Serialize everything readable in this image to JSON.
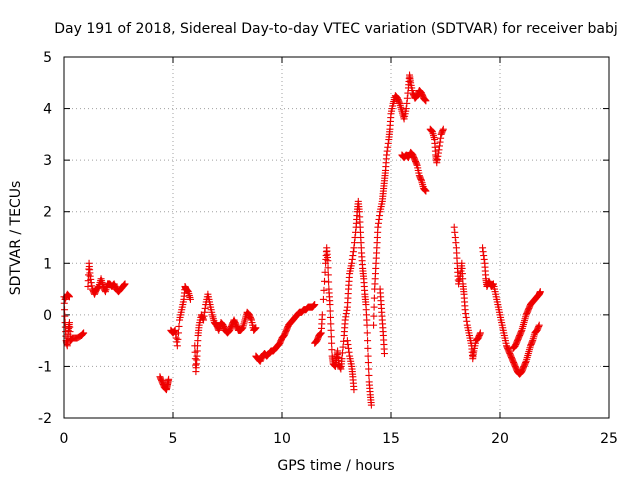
{
  "chart_data": {
    "type": "scatter",
    "title": "Day 191 of 2018, Sidereal Day-to-day VTEC variation (SDTVAR) for receiver babj",
    "xlabel": "GPS time / hours",
    "ylabel": "SDTVAR / TECUs",
    "xlim": [
      0,
      25
    ],
    "ylim": [
      -2,
      5
    ],
    "x_ticks": [
      "0",
      "5",
      "10",
      "15",
      "20",
      "25"
    ],
    "y_ticks": [
      "-2",
      "-1",
      "0",
      "1",
      "2",
      "3",
      "4",
      "5"
    ],
    "grid": true,
    "marker": "plus",
    "color": "#ff0000",
    "series": [
      {
        "name": "SDTVAR",
        "segments": [
          [
            [
              0.0,
              0.35
            ],
            [
              0.05,
              -0.15
            ],
            [
              0.1,
              -0.5
            ],
            [
              0.15,
              -0.6
            ],
            [
              0.2,
              -0.3
            ],
            [
              0.25,
              -0.15
            ],
            [
              0.3,
              -0.5
            ],
            [
              0.4,
              -0.45
            ],
            [
              0.6,
              -0.45
            ],
            [
              0.8,
              -0.4
            ],
            [
              0.9,
              -0.35
            ]
          ],
          [
            [
              0.05,
              0.3
            ],
            [
              0.15,
              0.4
            ],
            [
              0.25,
              0.35
            ]
          ],
          [
            [
              1.1,
              0.55
            ],
            [
              1.15,
              1.0
            ],
            [
              1.2,
              0.75
            ],
            [
              1.3,
              0.5
            ],
            [
              1.4,
              0.4
            ],
            [
              1.5,
              0.5
            ],
            [
              1.6,
              0.55
            ],
            [
              1.7,
              0.7
            ],
            [
              1.8,
              0.55
            ],
            [
              1.9,
              0.45
            ],
            [
              2.0,
              0.6
            ],
            [
              2.1,
              0.6
            ],
            [
              2.2,
              0.55
            ],
            [
              2.3,
              0.6
            ],
            [
              2.4,
              0.5
            ],
            [
              2.5,
              0.45
            ],
            [
              2.6,
              0.5
            ],
            [
              2.7,
              0.55
            ],
            [
              2.8,
              0.6
            ]
          ],
          [
            [
              4.4,
              -1.2
            ],
            [
              4.5,
              -1.3
            ],
            [
              4.6,
              -1.4
            ],
            [
              4.7,
              -1.45
            ],
            [
              4.75,
              -1.35
            ],
            [
              4.8,
              -1.25
            ]
          ],
          [
            [
              4.9,
              -0.3
            ],
            [
              5.0,
              -0.35
            ],
            [
              5.1,
              -0.3
            ],
            [
              5.2,
              -0.6
            ],
            [
              5.3,
              -0.1
            ],
            [
              5.4,
              0.1
            ],
            [
              5.5,
              0.3
            ],
            [
              5.55,
              0.55
            ],
            [
              5.6,
              0.5
            ],
            [
              5.7,
              0.45
            ],
            [
              5.8,
              0.3
            ]
          ],
          [
            [
              6.0,
              -0.6
            ],
            [
              6.05,
              -1.1
            ],
            [
              6.1,
              -0.8
            ],
            [
              6.15,
              -0.4
            ],
            [
              6.2,
              -0.2
            ],
            [
              6.3,
              0.0
            ],
            [
              6.4,
              -0.1
            ],
            [
              6.5,
              0.2
            ],
            [
              6.6,
              0.4
            ],
            [
              6.7,
              0.2
            ],
            [
              6.8,
              0.0
            ],
            [
              6.9,
              -0.15
            ],
            [
              7.0,
              -0.2
            ],
            [
              7.1,
              -0.3
            ],
            [
              7.2,
              -0.15
            ],
            [
              7.3,
              -0.2
            ],
            [
              7.4,
              -0.3
            ],
            [
              7.5,
              -0.35
            ],
            [
              7.6,
              -0.3
            ],
            [
              7.7,
              -0.2
            ],
            [
              7.8,
              -0.1
            ],
            [
              7.9,
              -0.2
            ],
            [
              8.0,
              -0.3
            ],
            [
              8.1,
              -0.3
            ],
            [
              8.2,
              -0.25
            ],
            [
              8.3,
              -0.1
            ],
            [
              8.4,
              0.05
            ],
            [
              8.5,
              0.0
            ],
            [
              8.6,
              -0.1
            ],
            [
              8.7,
              -0.3
            ],
            [
              8.8,
              -0.25
            ]
          ],
          [
            [
              8.8,
              -0.8
            ],
            [
              8.9,
              -0.85
            ],
            [
              9.0,
              -0.9
            ],
            [
              9.1,
              -0.8
            ],
            [
              9.2,
              -0.75
            ],
            [
              9.3,
              -0.8
            ],
            [
              9.4,
              -0.75
            ],
            [
              9.5,
              -0.7
            ],
            [
              9.6,
              -0.7
            ],
            [
              9.7,
              -0.65
            ],
            [
              9.8,
              -0.6
            ],
            [
              9.9,
              -0.55
            ],
            [
              10.0,
              -0.45
            ],
            [
              10.1,
              -0.4
            ],
            [
              10.2,
              -0.3
            ],
            [
              10.3,
              -0.2
            ],
            [
              10.4,
              -0.15
            ],
            [
              10.5,
              -0.1
            ],
            [
              10.6,
              -0.05
            ],
            [
              10.7,
              0.0
            ],
            [
              10.8,
              0.05
            ],
            [
              10.9,
              0.05
            ],
            [
              11.0,
              0.1
            ],
            [
              11.1,
              0.1
            ],
            [
              11.2,
              0.15
            ],
            [
              11.3,
              0.15
            ],
            [
              11.4,
              0.15
            ],
            [
              11.5,
              0.2
            ]
          ],
          [
            [
              11.5,
              -0.55
            ],
            [
              11.6,
              -0.5
            ],
            [
              11.7,
              -0.4
            ],
            [
              11.8,
              -0.35
            ],
            [
              11.85,
              0.0
            ]
          ],
          [
            [
              11.9,
              0.3
            ],
            [
              12.0,
              1.0
            ],
            [
              12.05,
              1.3
            ],
            [
              12.1,
              1.05
            ],
            [
              12.15,
              0.5
            ],
            [
              12.2,
              0.2
            ],
            [
              12.25,
              -0.3
            ],
            [
              12.3,
              -0.8
            ],
            [
              12.35,
              -0.95
            ],
            [
              12.45,
              -1.0
            ],
            [
              12.5,
              -0.85
            ],
            [
              12.55,
              -0.7
            ],
            [
              12.6,
              -0.95
            ],
            [
              12.7,
              -1.05
            ],
            [
              12.75,
              -0.85
            ],
            [
              12.85,
              -0.4
            ],
            [
              12.9,
              -0.1
            ],
            [
              13.0,
              0.15
            ],
            [
              13.05,
              0.5
            ],
            [
              13.1,
              0.8
            ],
            [
              13.2,
              1.0
            ],
            [
              13.3,
              1.3
            ],
            [
              13.4,
              1.7
            ],
            [
              13.45,
              2.0
            ],
            [
              13.5,
              2.2
            ],
            [
              13.55,
              2.0
            ],
            [
              13.6,
              1.6
            ],
            [
              13.65,
              1.2
            ],
            [
              13.7,
              0.9
            ],
            [
              13.75,
              0.7
            ],
            [
              13.8,
              0.4
            ],
            [
              13.85,
              0.2
            ],
            [
              13.9,
              -0.2
            ],
            [
              13.95,
              -0.8
            ],
            [
              14.0,
              -1.3
            ],
            [
              14.05,
              -1.55
            ],
            [
              14.1,
              -1.75
            ]
          ],
          [
            [
              13.0,
              -0.5
            ],
            [
              13.1,
              -0.8
            ],
            [
              13.2,
              -1.0
            ],
            [
              13.25,
              -1.2
            ],
            [
              13.3,
              -1.45
            ]
          ],
          [
            [
              14.2,
              -0.2
            ],
            [
              14.25,
              0.5
            ],
            [
              14.3,
              0.9
            ],
            [
              14.35,
              1.3
            ],
            [
              14.4,
              1.7
            ],
            [
              14.5,
              2.0
            ],
            [
              14.6,
              2.2
            ],
            [
              14.65,
              2.4
            ],
            [
              14.7,
              2.6
            ],
            [
              14.75,
              2.8
            ],
            [
              14.8,
              3.1
            ],
            [
              14.9,
              3.4
            ],
            [
              14.95,
              3.6
            ],
            [
              15.0,
              3.9
            ],
            [
              15.1,
              4.1
            ],
            [
              15.2,
              4.25
            ],
            [
              15.3,
              4.2
            ],
            [
              15.4,
              4.1
            ],
            [
              15.5,
              3.95
            ],
            [
              15.6,
              3.8
            ],
            [
              15.7,
              4.0
            ],
            [
              15.8,
              4.4
            ],
            [
              15.85,
              4.65
            ],
            [
              15.9,
              4.5
            ],
            [
              16.0,
              4.3
            ],
            [
              16.1,
              4.2
            ],
            [
              16.2,
              4.25
            ],
            [
              16.3,
              4.35
            ],
            [
              16.4,
              4.3
            ],
            [
              16.5,
              4.2
            ],
            [
              16.6,
              4.15
            ]
          ],
          [
            [
              14.5,
              0.5
            ],
            [
              14.55,
              0.2
            ],
            [
              14.6,
              -0.1
            ],
            [
              14.65,
              -0.4
            ],
            [
              14.7,
              -0.75
            ]
          ],
          [
            [
              15.5,
              3.1
            ],
            [
              15.6,
              3.05
            ],
            [
              15.7,
              3.1
            ],
            [
              15.8,
              3.05
            ],
            [
              15.9,
              3.15
            ],
            [
              16.0,
              3.1
            ],
            [
              16.1,
              3.0
            ],
            [
              16.2,
              2.9
            ],
            [
              16.3,
              2.7
            ],
            [
              16.4,
              2.6
            ],
            [
              16.5,
              2.45
            ],
            [
              16.6,
              2.4
            ]
          ],
          [
            [
              16.8,
              3.6
            ],
            [
              16.9,
              3.55
            ],
            [
              17.0,
              3.4
            ],
            [
              17.05,
              3.1
            ],
            [
              17.1,
              2.95
            ],
            [
              17.2,
              3.2
            ],
            [
              17.3,
              3.5
            ],
            [
              17.4,
              3.6
            ]
          ],
          [
            [
              17.9,
              1.7
            ],
            [
              18.0,
              1.3
            ],
            [
              18.05,
              0.9
            ],
            [
              18.1,
              0.6
            ],
            [
              18.2,
              0.8
            ],
            [
              18.25,
              1.0
            ],
            [
              18.3,
              0.6
            ],
            [
              18.35,
              0.4
            ],
            [
              18.4,
              0.1
            ],
            [
              18.5,
              -0.2
            ],
            [
              18.6,
              -0.4
            ],
            [
              18.7,
              -0.6
            ],
            [
              18.75,
              -0.85
            ],
            [
              18.8,
              -0.7
            ],
            [
              18.9,
              -0.5
            ],
            [
              19.0,
              -0.45
            ],
            [
              19.1,
              -0.35
            ]
          ],
          [
            [
              19.2,
              1.3
            ],
            [
              19.3,
              1.0
            ],
            [
              19.35,
              0.7
            ],
            [
              19.4,
              0.55
            ],
            [
              19.5,
              0.65
            ],
            [
              19.6,
              0.55
            ],
            [
              19.7,
              0.6
            ],
            [
              19.8,
              0.4
            ],
            [
              19.9,
              0.2
            ],
            [
              20.0,
              0.0
            ],
            [
              20.1,
              -0.2
            ],
            [
              20.2,
              -0.4
            ],
            [
              20.3,
              -0.6
            ],
            [
              20.4,
              -0.7
            ],
            [
              20.5,
              -0.8
            ],
            [
              20.6,
              -0.9
            ],
            [
              20.7,
              -1.0
            ],
            [
              20.8,
              -1.1
            ],
            [
              20.9,
              -1.15
            ],
            [
              21.0,
              -1.1
            ],
            [
              21.1,
              -1.0
            ],
            [
              21.2,
              -0.9
            ],
            [
              21.3,
              -0.75
            ],
            [
              21.4,
              -0.6
            ],
            [
              21.5,
              -0.5
            ],
            [
              21.6,
              -0.35
            ],
            [
              21.7,
              -0.3
            ],
            [
              21.8,
              -0.2
            ]
          ],
          [
            [
              20.6,
              -0.65
            ],
            [
              20.7,
              -0.6
            ],
            [
              20.8,
              -0.5
            ],
            [
              20.9,
              -0.4
            ],
            [
              21.0,
              -0.3
            ],
            [
              21.1,
              -0.15
            ],
            [
              21.2,
              0.0
            ],
            [
              21.3,
              0.1
            ],
            [
              21.4,
              0.2
            ],
            [
              21.5,
              0.25
            ],
            [
              21.6,
              0.3
            ],
            [
              21.7,
              0.35
            ],
            [
              21.8,
              0.4
            ],
            [
              21.85,
              0.45
            ]
          ]
        ]
      }
    ]
  }
}
